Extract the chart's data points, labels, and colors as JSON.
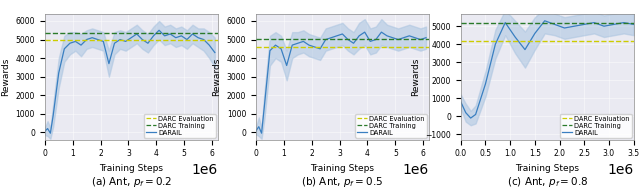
{
  "subplots": [
    {
      "title": "(a) Ant, $p_f = 0.2$",
      "darc_eval": 4950,
      "darc_train": 5350,
      "xlim": [
        0,
        6200000
      ],
      "ylim": [
        -400,
        6400
      ],
      "yticks": [
        0,
        1000,
        2000,
        3000,
        4000,
        5000,
        6000
      ],
      "darail_x": [
        0,
        100000,
        200000,
        300000,
        500000,
        700000,
        900000,
        1100000,
        1300000,
        1500000,
        1700000,
        1900000,
        2100000,
        2300000,
        2500000,
        2700000,
        2900000,
        3100000,
        3300000,
        3500000,
        3700000,
        3900000,
        4100000,
        4300000,
        4500000,
        4700000,
        4900000,
        5100000,
        5300000,
        5500000,
        5700000,
        5900000,
        6100000
      ],
      "darail_y": [
        50,
        200,
        -50,
        900,
        3200,
        4500,
        4800,
        4900,
        4700,
        5000,
        5100,
        5000,
        4900,
        3700,
        4800,
        5000,
        4900,
        5100,
        5300,
        5000,
        4800,
        5200,
        5500,
        5200,
        5300,
        5100,
        5200,
        5000,
        5300,
        5100,
        5000,
        4700,
        4300
      ],
      "darail_std": [
        200,
        400,
        300,
        600,
        800,
        700,
        600,
        500,
        600,
        500,
        500,
        500,
        500,
        700,
        600,
        500,
        500,
        500,
        500,
        500,
        500,
        500,
        500,
        500,
        500,
        500,
        500,
        500,
        500,
        500,
        600,
        700,
        800
      ]
    },
    {
      "title": "(b) Ant, $p_f = 0.5$",
      "darc_eval": 4600,
      "darc_train": 5050,
      "xlim": [
        0,
        6200000
      ],
      "ylim": [
        -400,
        6400
      ],
      "yticks": [
        0,
        1000,
        2000,
        3000,
        4000,
        5000,
        6000
      ],
      "darail_x": [
        0,
        100000,
        200000,
        300000,
        500000,
        700000,
        900000,
        1100000,
        1300000,
        1500000,
        1700000,
        1900000,
        2100000,
        2300000,
        2500000,
        2700000,
        2900000,
        3100000,
        3300000,
        3500000,
        3700000,
        3900000,
        4100000,
        4300000,
        4500000,
        4700000,
        4900000,
        5100000,
        5300000,
        5500000,
        5700000,
        5900000,
        6100000
      ],
      "darail_y": [
        80,
        300,
        -50,
        1400,
        4400,
        4700,
        4500,
        3600,
        4700,
        4800,
        4900,
        4700,
        4600,
        4500,
        5000,
        5100,
        5200,
        5300,
        5000,
        4800,
        5200,
        5400,
        4900,
        5000,
        5400,
        5200,
        5100,
        5000,
        5100,
        5200,
        5100,
        5000,
        5100
      ],
      "darail_std": [
        200,
        500,
        300,
        700,
        800,
        700,
        700,
        800,
        700,
        600,
        600,
        600,
        600,
        600,
        600,
        600,
        600,
        600,
        600,
        600,
        700,
        700,
        700,
        700,
        700,
        600,
        600,
        600,
        600,
        600,
        600,
        600,
        600
      ]
    },
    {
      "title": "(c) Ant, $p_f = 0.8$",
      "darc_eval": 4200,
      "darc_train": 5200,
      "xlim": [
        0,
        3500000
      ],
      "ylim": [
        -1300,
        5700
      ],
      "yticks": [
        -1000,
        0,
        1000,
        2000,
        3000,
        4000,
        5000
      ],
      "darail_x": [
        0,
        100000,
        200000,
        300000,
        500000,
        700000,
        900000,
        1100000,
        1300000,
        1500000,
        1700000,
        1900000,
        2100000,
        2300000,
        2500000,
        2700000,
        2900000,
        3100000,
        3300000,
        3500000
      ],
      "darail_y": [
        800,
        200,
        -100,
        100,
        1800,
        4000,
        5200,
        4400,
        3700,
        4600,
        5300,
        5100,
        4900,
        5000,
        5100,
        5200,
        5000,
        5100,
        5200,
        5100
      ],
      "darail_std": [
        400,
        500,
        400,
        500,
        700,
        800,
        700,
        900,
        1000,
        900,
        700,
        600,
        600,
        600,
        600,
        600,
        600,
        600,
        600,
        600
      ]
    }
  ],
  "captions": [
    "(a) Ant, $p_f = 0.2$",
    "(b) Ant, $p_f = 0.5$",
    "(c) Ant, $p_f = 0.8$"
  ],
  "line_color": "#3a7fc1",
  "fill_color": "#aac4e0",
  "darc_eval_color": "#cccc00",
  "darc_train_color": "#2a7a2a",
  "xlabel": "Training Steps",
  "ylabel": "Rewards",
  "legend_labels": [
    "DARC Evaluation",
    "DARC Training",
    "DARAIL"
  ],
  "background_color": "#eaeaf2"
}
